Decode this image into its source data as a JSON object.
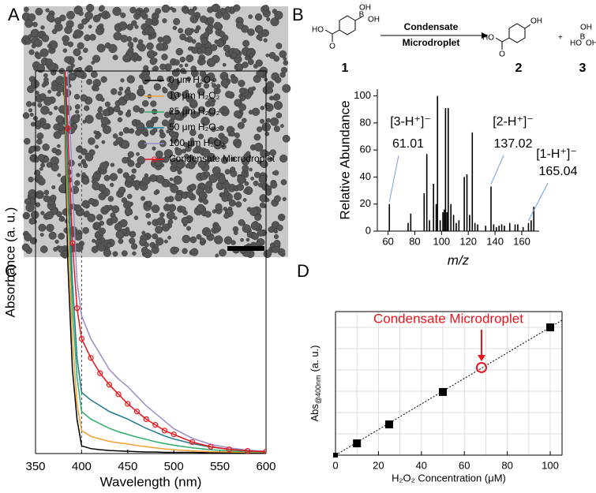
{
  "panel_labels": [
    "A",
    "B",
    "C",
    "D"
  ],
  "scheme": {
    "arrow_label": [
      "Condensate",
      "Microdroplet"
    ],
    "compounds": [
      "1",
      "2",
      "3"
    ],
    "plus": "+",
    "atoms": [
      "OH",
      "B",
      "OH",
      "HO",
      "O",
      "OH",
      "HO",
      "O",
      "OH",
      "B",
      "HO",
      "OH"
    ]
  },
  "chart_data": [
    {
      "type": "stem",
      "ylabel": "Relative Abundance",
      "xlabel": "m/z",
      "color": "#000000",
      "x": [
        61,
        75,
        77,
        87,
        89,
        91,
        94,
        96,
        97,
        99,
        101,
        102,
        103,
        104,
        105,
        107,
        109,
        111,
        113,
        117,
        119,
        121,
        123,
        125,
        127,
        133,
        137,
        139,
        141,
        143,
        145,
        147,
        151,
        155,
        157,
        161,
        165,
        167,
        169
      ],
      "values": [
        20,
        6,
        13,
        28,
        57,
        8,
        35,
        20,
        100,
        8,
        14,
        16,
        91,
        14,
        91,
        20,
        12,
        6,
        8,
        40,
        42,
        12,
        73,
        6,
        5,
        4,
        33,
        5,
        3,
        4,
        5,
        4,
        6,
        5,
        5,
        3,
        6,
        8,
        18
      ],
      "xlim": [
        52,
        173
      ],
      "ylim": [
        0,
        105
      ],
      "xticks": [
        60,
        80,
        100,
        120,
        140,
        160
      ],
      "yticks": [
        0,
        20,
        40,
        60,
        80,
        100
      ],
      "annotations": [
        {
          "label": "[3-H⁺]⁻",
          "x": 61.01
        },
        {
          "label": "[2-H⁺]⁻",
          "x": 137.02
        },
        {
          "label": "[1-H⁺]⁻",
          "x": 165.04
        }
      ]
    },
    {
      "type": "line",
      "ylabel": "Absorbance (a. u.)",
      "xlabel": "Wavelength (nm)",
      "x": [
        380,
        385,
        390,
        395,
        400,
        410,
        420,
        430,
        440,
        450,
        460,
        470,
        480,
        490,
        500,
        520,
        540,
        560,
        580,
        600
      ],
      "xlim": [
        350,
        600
      ],
      "ylim": [
        0,
        1
      ],
      "xticks": [
        350,
        400,
        450,
        500,
        550,
        600
      ],
      "vline": 400,
      "series": [
        {
          "name": "0 μm H₂O₂",
          "color": "#000000",
          "values": [
            1.1,
            0.5,
            0.22,
            0.09,
            0.02,
            0.013,
            0.01,
            0.008,
            0.007,
            0.006,
            0.005,
            0.004,
            0.004,
            0.003,
            0.003,
            0.003,
            0.002,
            0.002,
            0.002,
            0.002
          ]
        },
        {
          "name": "10 μm H₂O₂",
          "color": "#f0a030",
          "values": [
            1.1,
            0.6,
            0.3,
            0.13,
            0.06,
            0.045,
            0.038,
            0.032,
            0.028,
            0.025,
            0.021,
            0.018,
            0.015,
            0.012,
            0.01,
            0.007,
            0.005,
            0.004,
            0.003,
            0.003
          ]
        },
        {
          "name": "25 μm H₂O₂",
          "color": "#2fae6a",
          "values": [
            1.1,
            0.7,
            0.38,
            0.2,
            0.11,
            0.09,
            0.078,
            0.066,
            0.057,
            0.05,
            0.043,
            0.037,
            0.031,
            0.026,
            0.022,
            0.015,
            0.01,
            0.007,
            0.005,
            0.004
          ]
        },
        {
          "name": "50 μm H₂O₂",
          "color": "#1d7a8c",
          "values": [
            1.1,
            0.75,
            0.45,
            0.25,
            0.16,
            0.14,
            0.125,
            0.11,
            0.1,
            0.09,
            0.078,
            0.066,
            0.056,
            0.046,
            0.038,
            0.026,
            0.017,
            0.011,
            0.007,
            0.005
          ]
        },
        {
          "name": "100 μm H₂O₂",
          "color": "#9a8cc8",
          "values": [
            1.2,
            1.0,
            0.7,
            0.45,
            0.36,
            0.3,
            0.26,
            0.22,
            0.195,
            0.175,
            0.15,
            0.125,
            0.105,
            0.085,
            0.065,
            0.04,
            0.024,
            0.015,
            0.009,
            0.006
          ]
        },
        {
          "name": "Condensate Microdroplet",
          "color": "#e8141b",
          "markers": true,
          "values": [
            1.1,
            0.85,
            0.55,
            0.38,
            0.3,
            0.25,
            0.21,
            0.18,
            0.155,
            0.13,
            0.11,
            0.09,
            0.075,
            0.06,
            0.05,
            0.03,
            0.018,
            0.011,
            0.007,
            0.005
          ]
        }
      ]
    },
    {
      "type": "scatter",
      "ylabel": [
        "Abs",
        "@400nm",
        "(a. u.)"
      ],
      "xlabel": "H₂O₂ Concentration (μM)",
      "color": "#000000",
      "x": [
        0,
        10,
        25,
        50,
        100
      ],
      "values": [
        0,
        0.082,
        0.214,
        0.44,
        0.89
      ],
      "xlim": [
        0,
        105.5
      ],
      "ylim": [
        0,
        1
      ],
      "xticks": [
        0,
        20,
        40,
        60,
        80,
        100
      ],
      "grid": true,
      "fit": {
        "x": [
          0,
          105.5
        ],
        "values": [
          0,
          0.94
        ]
      },
      "highlight": {
        "label": "Condensate Microdroplet",
        "x": 68,
        "value": 0.61,
        "color": "#e8141b"
      }
    }
  ]
}
